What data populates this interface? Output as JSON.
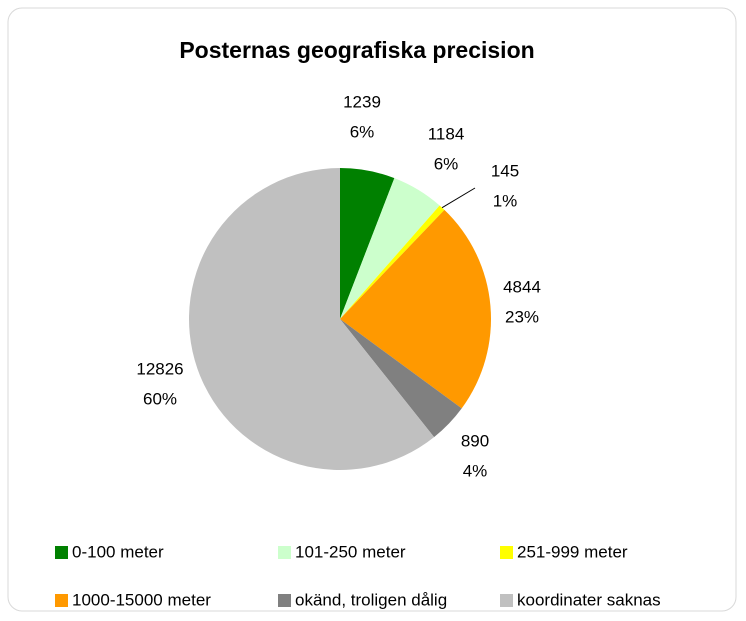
{
  "chart_data": {
    "type": "pie",
    "title": "Posternas geografiska precision",
    "categories": [
      "0-100 meter",
      "101-250 meter",
      "251-999 meter",
      "1000-15000 meter",
      "okänd, troligen dålig",
      "koordinater saknas"
    ],
    "values": [
      1239,
      1184,
      145,
      4844,
      890,
      12826
    ],
    "percent_labels": [
      "6%",
      "6%",
      "1%",
      "23%",
      "4%",
      "60%"
    ],
    "colors": [
      "#008000",
      "#ccffcc",
      "#ffff00",
      "#ff9900",
      "#808080",
      "#c0c0c0"
    ],
    "legend": "bottom"
  }
}
